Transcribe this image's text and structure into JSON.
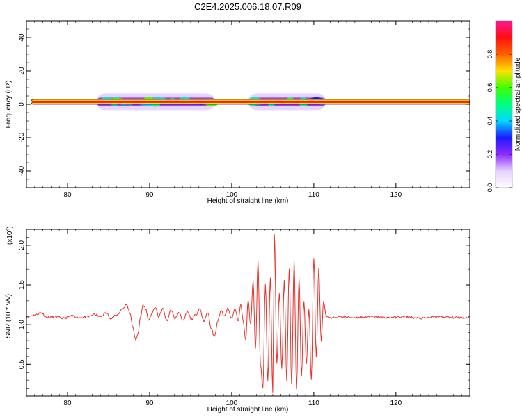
{
  "figure_title": "C2E4.2025.006.18.07.R09",
  "colors": {
    "snr_line": "#e8312a",
    "colormap": [
      "#ffffff",
      "#e6d0ff",
      "#8f2bff",
      "#1a1aff",
      "#00d9ff",
      "#00ff80",
      "#40ff00",
      "#ffe000",
      "#ff6000",
      "#ff1010",
      "#ff1493"
    ]
  },
  "chart_data": [
    {
      "type": "heatmap",
      "title": "",
      "xlabel": "Height of straight line (km)",
      "ylabel": "Frequency (Hz)",
      "xlim": [
        75,
        129
      ],
      "ylim": [
        -50,
        50
      ],
      "xticks": [
        "80",
        "90",
        "100",
        "110",
        "120"
      ],
      "yticks": [
        "40",
        "20",
        "0",
        "-20",
        "-40"
      ],
      "colorbar": {
        "label": "Normalized spectral amplitude",
        "range": [
          0,
          1
        ],
        "ticks": [
          "0.0",
          "0.2",
          "0.4",
          "0.6",
          "0.8"
        ]
      },
      "dominant_frequency_hz": 1.5,
      "broadband_regions_km": [
        [
          83.5,
          98
        ],
        [
          102,
          111.5
        ]
      ]
    },
    {
      "type": "line",
      "title": "",
      "xlabel": "Height of straight line (km)",
      "ylabel": "SNR (10 * v/v)",
      "y_multiplier": "(x10",
      "y_multiplier_exp": "4",
      "y_multiplier_close": ")",
      "xlim": [
        75,
        129
      ],
      "ylim": [
        0.1,
        2.2
      ],
      "xticks": [
        "80",
        "90",
        "100",
        "110",
        "120"
      ],
      "yticks": [
        "2.0",
        "1.5",
        "1.0",
        "0.5"
      ],
      "series": [
        {
          "x": [
            75,
            76,
            76.8,
            77.5,
            78.5,
            79.5,
            80.5,
            81.5,
            82.5,
            83.3,
            84,
            84.7,
            85.3,
            86,
            86.7,
            87.2,
            87.6,
            88,
            88.3,
            88.6,
            88.9,
            89.2,
            89.5,
            89.9,
            90.3,
            90.7,
            91.1,
            91.6,
            92.1,
            92.6,
            93.1,
            93.6,
            94.1,
            94.6,
            95.1,
            95.6,
            96.1,
            96.6,
            97.1,
            97.5,
            97.9,
            98.3,
            98.7,
            99.1,
            99.5,
            100,
            100.4,
            100.8,
            101.1,
            101.4,
            101.7,
            102,
            102.3,
            102.6,
            102.9,
            103.2,
            103.5,
            103.8,
            104.1,
            104.4,
            104.7,
            105,
            105.2,
            105.5,
            105.8,
            106.1,
            106.4,
            106.7,
            107,
            107.3,
            107.6,
            107.9,
            108.2,
            108.5,
            108.8,
            109.1,
            109.4,
            109.7,
            110,
            110.3,
            110.6,
            110.9,
            111.2,
            111.5,
            112,
            113,
            115,
            117,
            119,
            121,
            123,
            125,
            127,
            129
          ],
          "y": [
            1.1,
            1.12,
            1.15,
            1.09,
            1.1,
            1.08,
            1.11,
            1.09,
            1.1,
            1.13,
            1.1,
            1.15,
            1.08,
            1.12,
            1.2,
            1.25,
            1.15,
            0.95,
            0.8,
            0.9,
            1.1,
            1.25,
            1.2,
            1.05,
            1.15,
            1.22,
            1.1,
            1.2,
            1.05,
            1.18,
            1.08,
            1.15,
            1.05,
            1.16,
            1.07,
            1.12,
            1.2,
            1.05,
            1.15,
            0.95,
            0.85,
            1.05,
            1.18,
            1.1,
            1.2,
            1.08,
            1.2,
            1.05,
            1.25,
            1.05,
            0.8,
            1.3,
            1.0,
            1.55,
            0.7,
            1.8,
            0.5,
            0.2,
            1.5,
            0.3,
            1.6,
            0.15,
            2.15,
            0.5,
            1.4,
            0.45,
            1.55,
            0.3,
            1.7,
            0.25,
            1.8,
            0.2,
            1.6,
            0.35,
            1.3,
            0.5,
            1.2,
            0.3,
            1.85,
            0.6,
            1.7,
            0.8,
            1.3,
            1.1,
            1.08,
            1.1,
            1.09,
            1.1,
            1.09,
            1.1,
            1.08,
            1.1,
            1.09,
            1.09
          ]
        }
      ]
    }
  ]
}
